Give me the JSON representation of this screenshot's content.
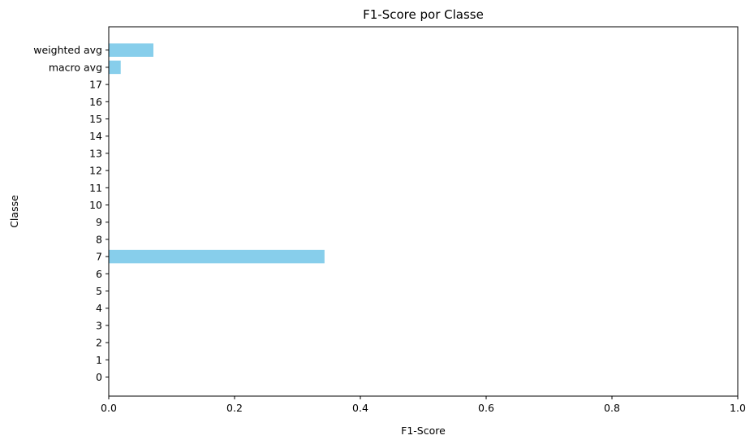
{
  "chart_data": {
    "type": "bar",
    "orientation": "horizontal",
    "title": "F1-Score por Classe",
    "xlabel": "F1-Score",
    "ylabel": "Classe",
    "xlim": [
      0,
      1.0
    ],
    "xticks": [
      "0.0",
      "0.2",
      "0.4",
      "0.6",
      "0.8",
      "1.0"
    ],
    "xtick_values": [
      0,
      0.2,
      0.4,
      0.6,
      0.8,
      1.0
    ],
    "categories": [
      "0",
      "1",
      "2",
      "3",
      "4",
      "5",
      "6",
      "7",
      "8",
      "9",
      "10",
      "11",
      "12",
      "13",
      "14",
      "15",
      "16",
      "17",
      "macro avg",
      "weighted avg"
    ],
    "values": [
      0,
      0,
      0,
      0,
      0,
      0,
      0,
      0.343,
      0,
      0,
      0,
      0,
      0,
      0,
      0,
      0,
      0,
      0,
      0.019,
      0.071
    ],
    "bar_color": "#87ceeb",
    "grid": false,
    "legend": "none"
  }
}
